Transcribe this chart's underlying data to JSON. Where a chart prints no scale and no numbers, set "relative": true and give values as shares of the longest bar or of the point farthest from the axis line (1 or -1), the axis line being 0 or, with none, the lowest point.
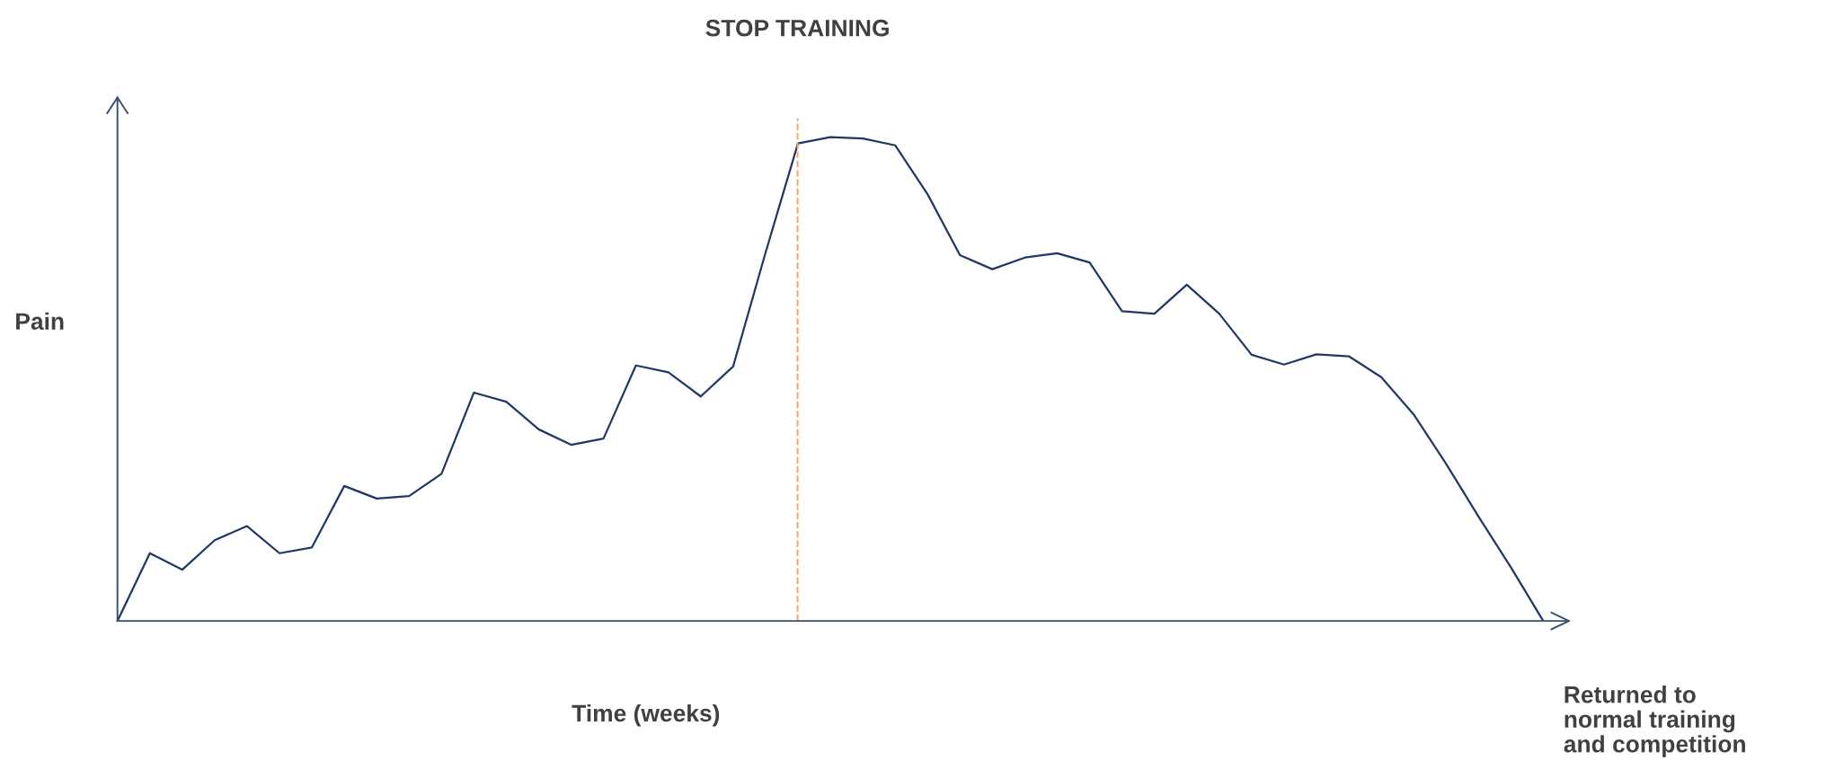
{
  "chart_data": {
    "type": "line",
    "relative": true,
    "xlabel": "Time (weeks)",
    "ylabel": "Pain",
    "color": "#1f3864",
    "marker": "none",
    "line_style": "solid",
    "categories": [
      null,
      null,
      null,
      null,
      null,
      null,
      null,
      null,
      null,
      null,
      null,
      null,
      null,
      null,
      null,
      null,
      null,
      null,
      null,
      null,
      null,
      null,
      null,
      null,
      null,
      null,
      null,
      null,
      null,
      null,
      null,
      null,
      null,
      null,
      null,
      null,
      null,
      null,
      null,
      null,
      null,
      null,
      null,
      null,
      null
    ],
    "values": [
      0,
      0.14,
      0.106,
      0.167,
      0.196,
      0.14,
      0.152,
      0.279,
      0.253,
      0.258,
      0.304,
      0.472,
      0.453,
      0.396,
      0.364,
      0.377,
      0.528,
      0.514,
      0.464,
      0.526,
      0.761,
      0.987,
      1,
      0.997,
      0.983,
      0.882,
      0.756,
      0.727,
      0.751,
      0.76,
      0.741,
      0.64,
      0.635,
      0.695,
      0.635,
      0.55,
      0.53,
      0.551,
      0.547,
      0.504,
      0.427,
      0.325,
      0.216,
      0.111,
      0
    ],
    "annotations": [
      "STOP TRAINING",
      "Returned to\nnormal training\nand competition"
    ]
  }
}
